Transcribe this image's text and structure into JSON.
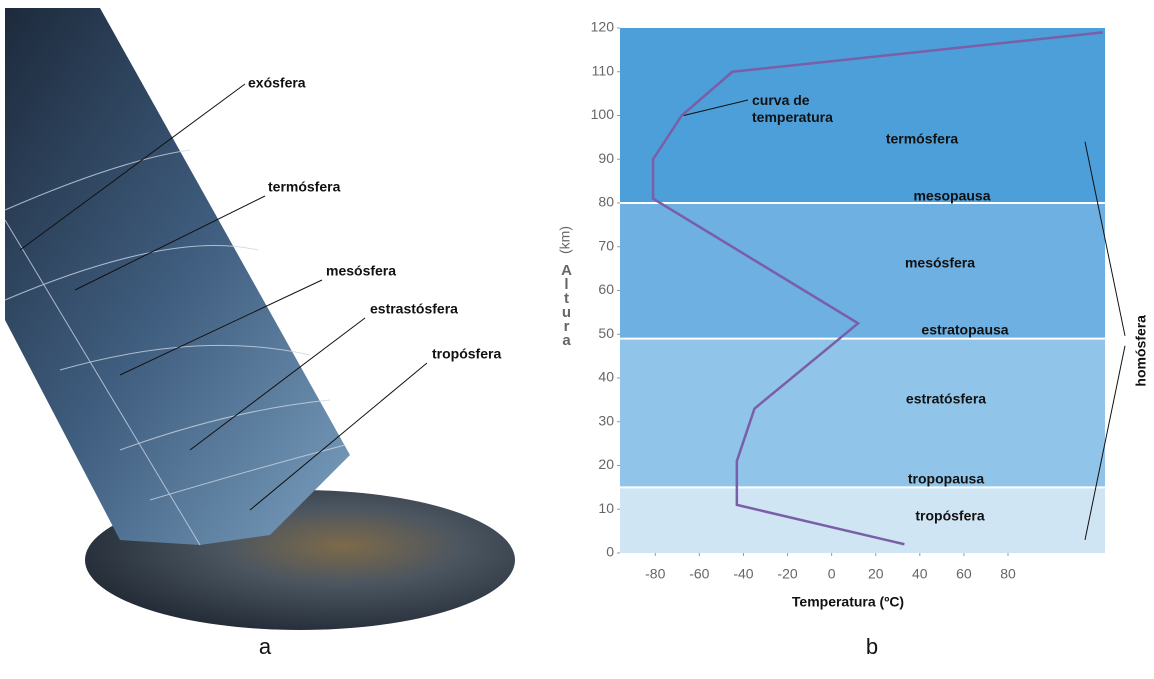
{
  "illustration": {
    "labels": [
      "exósfera",
      "termósfera",
      "mesósfera",
      "estrastósfera",
      "tropósfera"
    ],
    "caption": "a"
  },
  "chart_data": {
    "type": "line",
    "caption": "b",
    "xlabel": "Temperatura (ºC)",
    "ylabel": "Altura",
    "ylabel_unit": "(km)",
    "annotation": "curva de temperatura",
    "x": [
      33,
      -43,
      -43,
      -35,
      12,
      -81,
      -81,
      -68,
      -45,
      123
    ],
    "series": [
      {
        "name": "curva de temperatura",
        "color": "#7b5ea8",
        "values": [
          2,
          11,
          21,
          33,
          52.5,
          81,
          90,
          100,
          110,
          119
        ]
      }
    ],
    "xlim": [
      -96,
      124
    ],
    "xticks": [
      -80,
      -60,
      -40,
      -20,
      0,
      20,
      40,
      60,
      80
    ],
    "ylim": [
      0,
      120
    ],
    "yticks": [
      0,
      10,
      20,
      30,
      40,
      50,
      60,
      70,
      80,
      90,
      100,
      110,
      120
    ],
    "regions": [
      {
        "name": "tropósfera",
        "from": 0,
        "to": 15,
        "color": "#cfe5f4"
      },
      {
        "name": "estratósfera",
        "from": 15,
        "to": 49,
        "color": "#90c4e9"
      },
      {
        "name": "mesósfera",
        "from": 49,
        "to": 80,
        "color": "#6db0e1"
      },
      {
        "name": "termósfera",
        "from": 80,
        "to": 120,
        "color": "#4c9fd9"
      }
    ],
    "boundaries": [
      {
        "name": "tropopausa",
        "value": 15
      },
      {
        "name": "estratopausa",
        "value": 49
      },
      {
        "name": "mesopausa",
        "value": 80
      }
    ],
    "bracket": {
      "label": "homósfera",
      "from": 3,
      "to": 94
    }
  }
}
